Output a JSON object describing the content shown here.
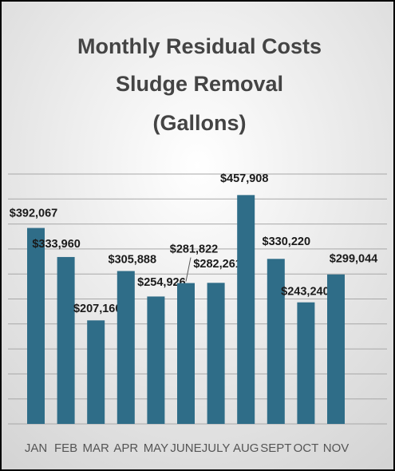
{
  "chart_data": {
    "type": "bar",
    "title": [
      "Monthly Residual Costs",
      "Sludge Removal",
      "(Gallons)"
    ],
    "categories": [
      "JAN",
      "FEB",
      "MAR",
      "APR",
      "MAY",
      "JUNE",
      "JULY",
      "AUG",
      "SEPT",
      "OCT",
      "NOV"
    ],
    "values": [
      392067,
      333960,
      207160,
      305888,
      254926,
      281822,
      282261,
      457908,
      330220,
      243240,
      299044
    ],
    "value_labels": [
      "$392,067",
      "$333,960",
      "$207,160",
      "$305,888",
      "$254,926",
      "$281,822",
      "$282,261",
      "$457,908",
      "$330,220",
      "$243,240",
      "$299,044"
    ],
    "color": "#2f6d88",
    "ylim": [
      0,
      500000
    ],
    "yticks": [
      0,
      50000,
      100000,
      150000,
      200000,
      250000,
      300000,
      350000,
      400000,
      450000,
      500000
    ],
    "grid": true
  }
}
